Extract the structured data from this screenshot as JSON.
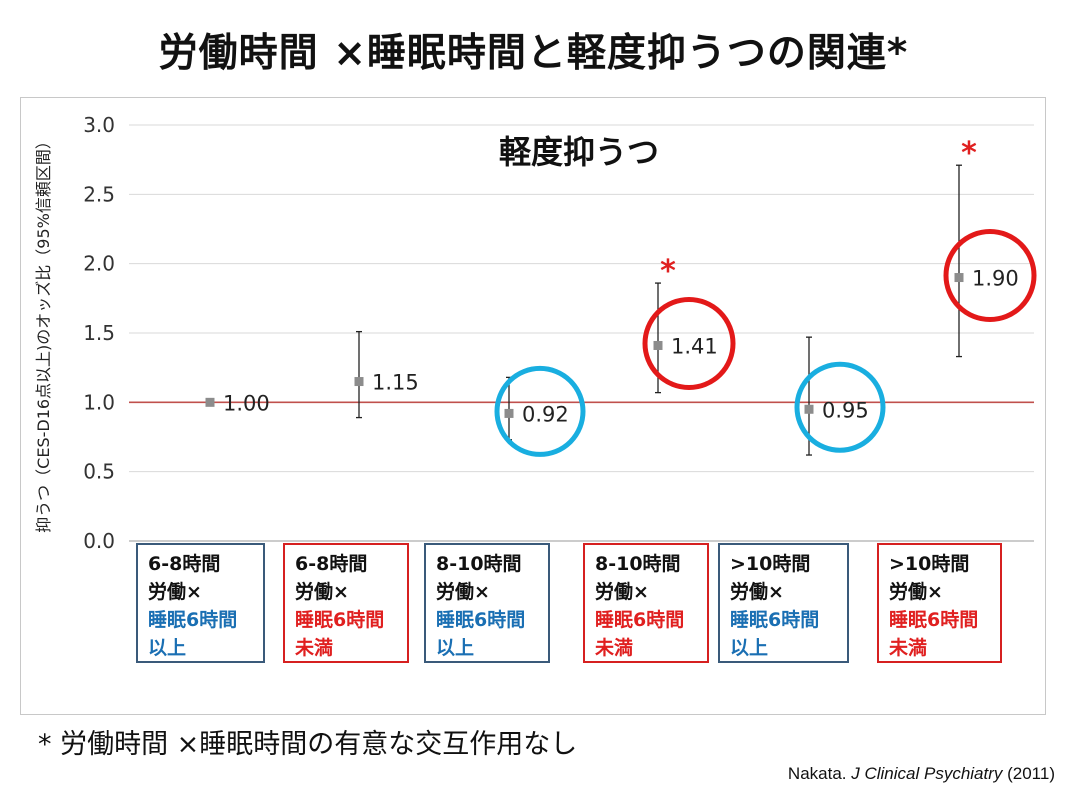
{
  "title": "労働時間 ×睡眠時間と軽度抑うつの関連*",
  "footnote": "* 労働時間 ×睡眠時間の有意な交互作用なし",
  "citation": {
    "author": "Nakata. ",
    "journal": "J Clinical Psychiatry",
    "year": " (2011)"
  },
  "colors": {
    "blue": "#1a6fb3",
    "red": "#e02020",
    "circle_blue": "#19aee0",
    "circle_red": "#e31919",
    "box_blue_border": "#3a5a7a",
    "box_red_border": "#d62020",
    "reference_line": "#c0504d",
    "marker": "#8c8c8c"
  },
  "chart_data": {
    "type": "scatter",
    "title": "軽度抑うつ",
    "ylabel": "抑うつ（CES-D16点以上)のオッズ比（95%信頼区間）",
    "ylim": [
      0,
      3.0
    ],
    "yticks": [
      "0.0",
      "0.5",
      "1.0",
      "1.5",
      "2.0",
      "2.5",
      "3.0"
    ],
    "reference_line": 1.0,
    "categories": [
      {
        "lines": [
          "6-8時間",
          "労働×",
          "睡眠6時間",
          "以上"
        ],
        "sleep": "long"
      },
      {
        "lines": [
          "6-8時間",
          "労働×",
          "睡眠6時間",
          "未満"
        ],
        "sleep": "short"
      },
      {
        "lines": [
          "8-10時間",
          "労働×",
          "睡眠6時間",
          "以上"
        ],
        "sleep": "long"
      },
      {
        "lines": [
          "8-10時間",
          "労働×",
          "睡眠6時間",
          "未満"
        ],
        "sleep": "short"
      },
      {
        "lines": [
          ">10時間",
          "労働×",
          "睡眠6時間",
          "以上"
        ],
        "sleep": "long"
      },
      {
        "lines": [
          ">10時間",
          "労働×",
          "睡眠6時間",
          "未満"
        ],
        "sleep": "short"
      }
    ],
    "points": [
      {
        "value": 1.0,
        "label": "1.00",
        "ci": null,
        "highlight": null,
        "significant": false
      },
      {
        "value": 1.15,
        "label": "1.15",
        "ci": [
          0.89,
          1.51
        ],
        "highlight": null,
        "significant": false
      },
      {
        "value": 0.92,
        "label": "0.92",
        "ci": [
          0.73,
          1.18
        ],
        "highlight": "blue",
        "significant": false
      },
      {
        "value": 1.41,
        "label": "1.41",
        "ci": [
          1.07,
          1.86
        ],
        "highlight": "red",
        "significant": true
      },
      {
        "value": 0.95,
        "label": "0.95",
        "ci": [
          0.62,
          1.47
        ],
        "highlight": "blue",
        "significant": false
      },
      {
        "value": 1.9,
        "label": "1.90",
        "ci": [
          1.33,
          2.71
        ],
        "highlight": "red",
        "significant": true
      }
    ],
    "significance_marker": "*"
  }
}
